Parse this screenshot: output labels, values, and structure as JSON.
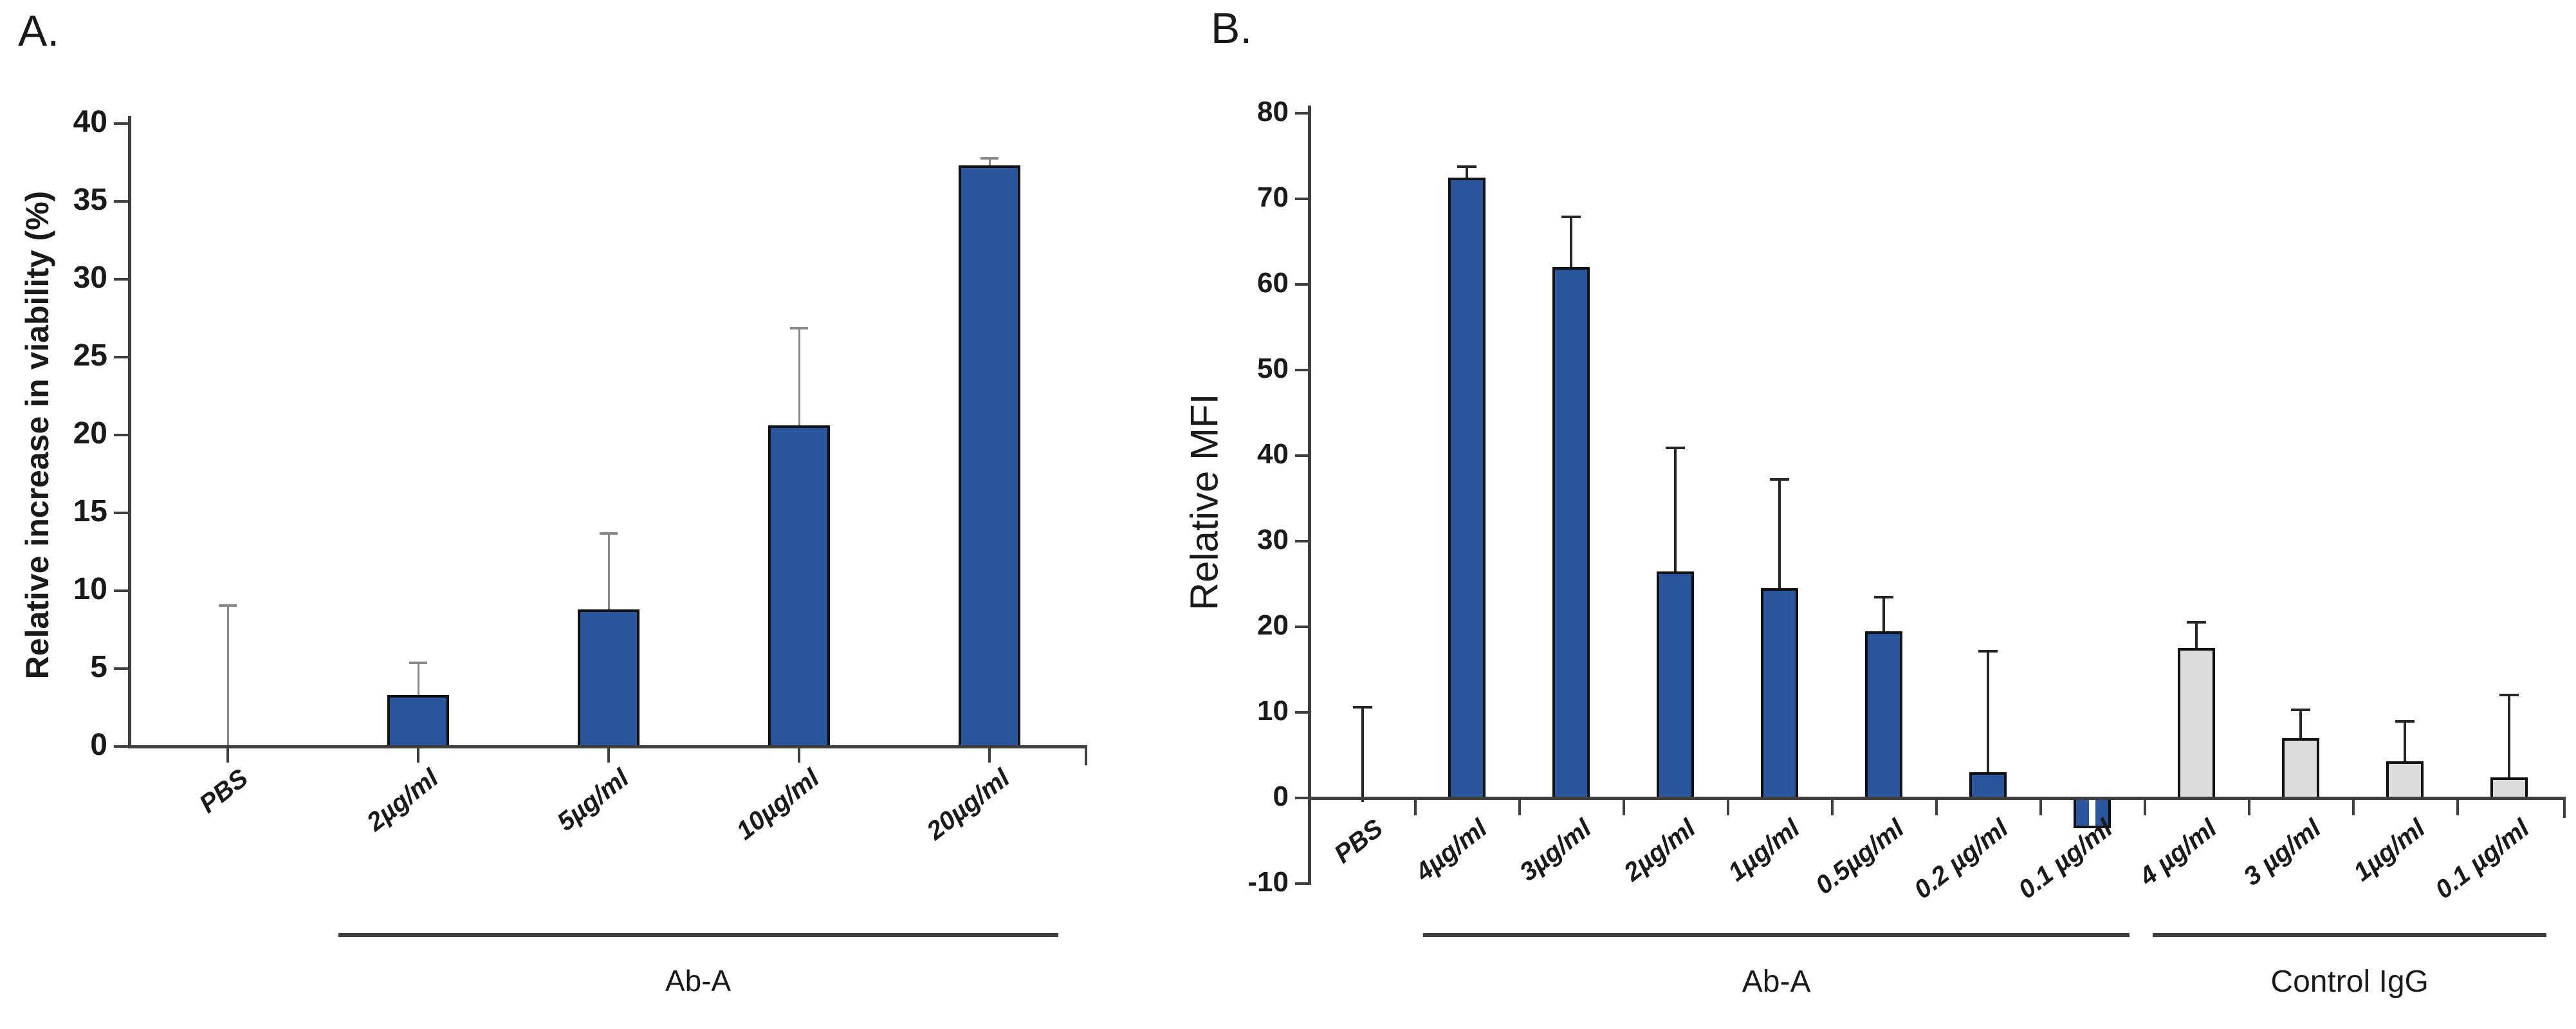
{
  "chart_data": [
    {
      "type": "bar",
      "panel_label": "A.",
      "ylabel": "Relative increase in viability (%)",
      "xlabel": "",
      "categories": [
        "PBS",
        "2µg/ml",
        "5µg/ml",
        "10µg/ml",
        "20µg/ml"
      ],
      "values": [
        0,
        3.3,
        8.8,
        20.6,
        37.3
      ],
      "errors_plus": [
        9.1,
        2.1,
        4.9,
        6.3,
        0.5
      ],
      "bar_colors": [
        "#2b569e",
        "#2b569e",
        "#2b569e",
        "#2b569e",
        "#2b569e"
      ],
      "ylim": [
        0,
        40
      ],
      "ytick_step": 5,
      "ytick_labels": [
        "40",
        "35",
        "30",
        "25",
        "20",
        "15",
        "10",
        "5",
        "0"
      ],
      "grid": false,
      "legend": null,
      "groups": [
        {
          "label": "Ab-A",
          "from": 1,
          "to": 4
        }
      ],
      "split_bar_index": null
    },
    {
      "type": "bar",
      "panel_label": "B.",
      "ylabel": "Relative MFI",
      "xlabel": "",
      "categories": [
        "PBS",
        "4µg/ml",
        "3µg/ml",
        "2µg/ml",
        "1µg/ml",
        "0.5µg/ml",
        "0.2 µg/ml",
        "0.1 µg/ml",
        "4 µg/ml",
        "3 µg/ml",
        "1µg/ml",
        "0.1 µg/ml"
      ],
      "values": [
        0,
        72.5,
        62,
        26.5,
        24.5,
        19.5,
        3,
        -3.5,
        17.5,
        7,
        4.3,
        2.4
      ],
      "errors_plus": [
        10.7,
        1.3,
        6,
        14.5,
        12.8,
        4,
        14.2,
        0,
        3.1,
        3.4,
        4.7,
        9.7
      ],
      "bar_colors": [
        "#2b569e",
        "#2b569e",
        "#2b569e",
        "#2b569e",
        "#2b569e",
        "#2b569e",
        "#2b569e",
        "#2b569e",
        "#dcdcdc",
        "#dcdcdc",
        "#dcdcdc",
        "#dcdcdc"
      ],
      "ylim": [
        -10,
        80
      ],
      "ytick_step": 10,
      "ytick_labels": [
        "80",
        "70",
        "60",
        "50",
        "40",
        "30",
        "20",
        "10",
        "0",
        "-10"
      ],
      "grid": false,
      "legend": null,
      "groups": [
        {
          "label": "Ab-A",
          "from": 1,
          "to": 7
        },
        {
          "label": "Control IgG",
          "from": 8,
          "to": 11
        }
      ],
      "split_bar_index": 7
    }
  ],
  "colors": {
    "bar_blue": "#2b569e",
    "bar_gray": "#dcdcdc",
    "bar_border": "#111111",
    "axis": "#3f3f3f",
    "whisker_panel_a": "#8a8a8a",
    "whisker_panel_b": "#262626"
  }
}
